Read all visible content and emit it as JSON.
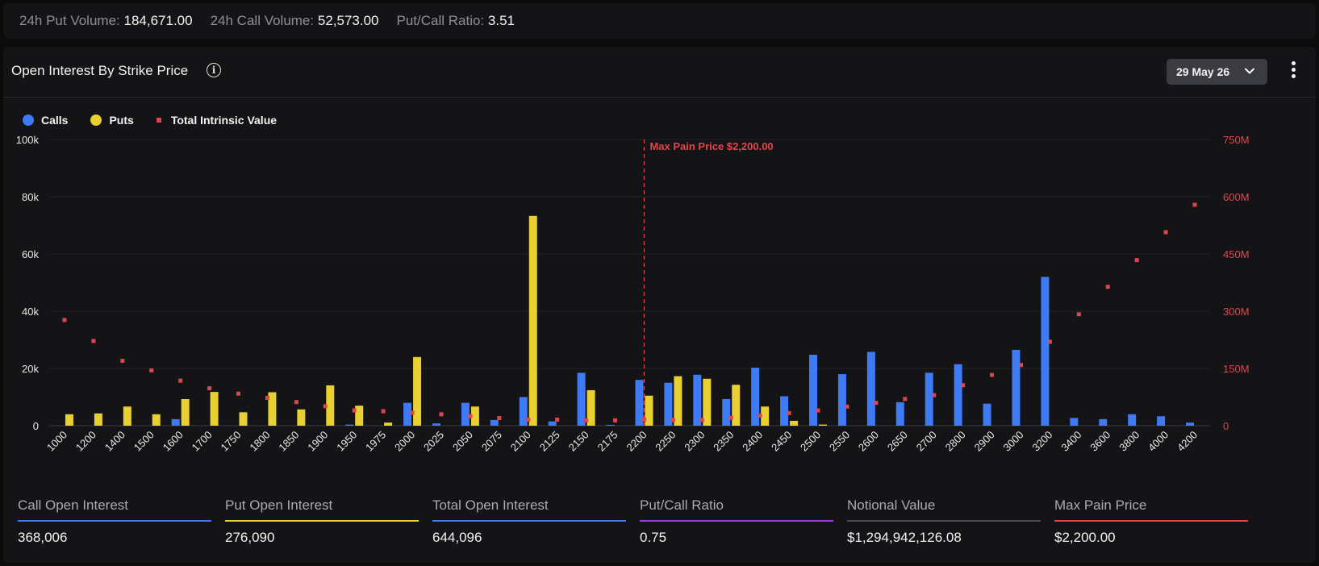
{
  "topbar": {
    "put_volume_label": "24h Put Volume:",
    "put_volume_value": "184,671.00",
    "call_volume_label": "24h Call Volume:",
    "call_volume_value": "52,573.00",
    "ratio_label": "Put/Call Ratio:",
    "ratio_value": "3.51"
  },
  "panel": {
    "title": "Open Interest By Strike Price",
    "info_icon": "info-icon",
    "date_selector": "29 May 26",
    "more_icon": "more-vertical-icon"
  },
  "legend": {
    "calls": "Calls",
    "puts": "Puts",
    "intrinsic": "Total Intrinsic Value"
  },
  "colors": {
    "calls": "#3f7af5",
    "puts": "#e8cf32",
    "intrinsic": "#e0454c",
    "max_pain": "#e0454c"
  },
  "chart_data": {
    "type": "bar",
    "categories": [
      "1000",
      "1200",
      "1400",
      "1500",
      "1600",
      "1700",
      "1750",
      "1800",
      "1850",
      "1900",
      "1950",
      "1975",
      "2000",
      "2025",
      "2050",
      "2075",
      "2100",
      "2125",
      "2150",
      "2175",
      "2200",
      "2250",
      "2300",
      "2350",
      "2400",
      "2450",
      "2500",
      "2550",
      "2600",
      "2650",
      "2700",
      "2800",
      "2900",
      "3000",
      "3200",
      "3400",
      "3600",
      "3800",
      "4000",
      "4200"
    ],
    "series": [
      {
        "name": "Calls",
        "axis": "left",
        "values": [
          0,
          0,
          0,
          0,
          2300,
          0,
          0,
          0,
          0,
          0,
          400,
          0,
          8000,
          800,
          8000,
          2000,
          10000,
          1500,
          18500,
          300,
          16000,
          15000,
          17800,
          9300,
          20300,
          10300,
          24800,
          18000,
          25800,
          8200,
          18500,
          21500,
          7700,
          26500,
          52000,
          2700,
          2300,
          4000,
          3300,
          1100
        ]
      },
      {
        "name": "Puts",
        "axis": "left",
        "values": [
          4000,
          4300,
          6700,
          4000,
          9300,
          11800,
          4700,
          11700,
          5700,
          14100,
          7000,
          1100,
          24000,
          0,
          6700,
          0,
          73300,
          0,
          12400,
          0,
          10500,
          17300,
          16400,
          14300,
          6700,
          1700,
          400,
          0,
          0,
          0,
          0,
          0,
          0,
          0,
          0,
          0,
          0,
          0,
          0,
          0
        ]
      },
      {
        "name": "Total Intrinsic Value",
        "axis": "right",
        "values": [
          277,
          222,
          170,
          145,
          118,
          98,
          84,
          73,
          62,
          51,
          40,
          38,
          34,
          30,
          25,
          20,
          16,
          16,
          14,
          14,
          16,
          15,
          15,
          21,
          27,
          33,
          40,
          50,
          60,
          70,
          80,
          106,
          133,
          159,
          220,
          292,
          364,
          434,
          507,
          579
        ]
      }
    ],
    "ylim_left": [
      0,
      100000
    ],
    "yticks_left": [
      "0",
      "20k",
      "40k",
      "60k",
      "80k",
      "100k"
    ],
    "ylim_right": [
      0,
      750
    ],
    "yticks_right": [
      "0",
      "150M",
      "300M",
      "450M",
      "600M",
      "750M"
    ],
    "annotation": {
      "category": "2200",
      "label": "Max Pain Price $2,200.00"
    },
    "legend_position": "top-left",
    "grid": true
  },
  "metrics": [
    {
      "label": "Call Open Interest",
      "value": "368,006",
      "color": "#3f7af5"
    },
    {
      "label": "Put Open Interest",
      "value": "276,090",
      "color": "#e8cf32"
    },
    {
      "label": "Total Open Interest",
      "value": "644,096",
      "color": "#3f7af5"
    },
    {
      "label": "Put/Call Ratio",
      "value": "0.75",
      "color": "#9b3fe0"
    },
    {
      "label": "Notional Value",
      "value": "$1,294,942,126.08",
      "color": "#4a4c52"
    },
    {
      "label": "Max Pain Price",
      "value": "$2,200.00",
      "color": "#e0454c"
    }
  ]
}
